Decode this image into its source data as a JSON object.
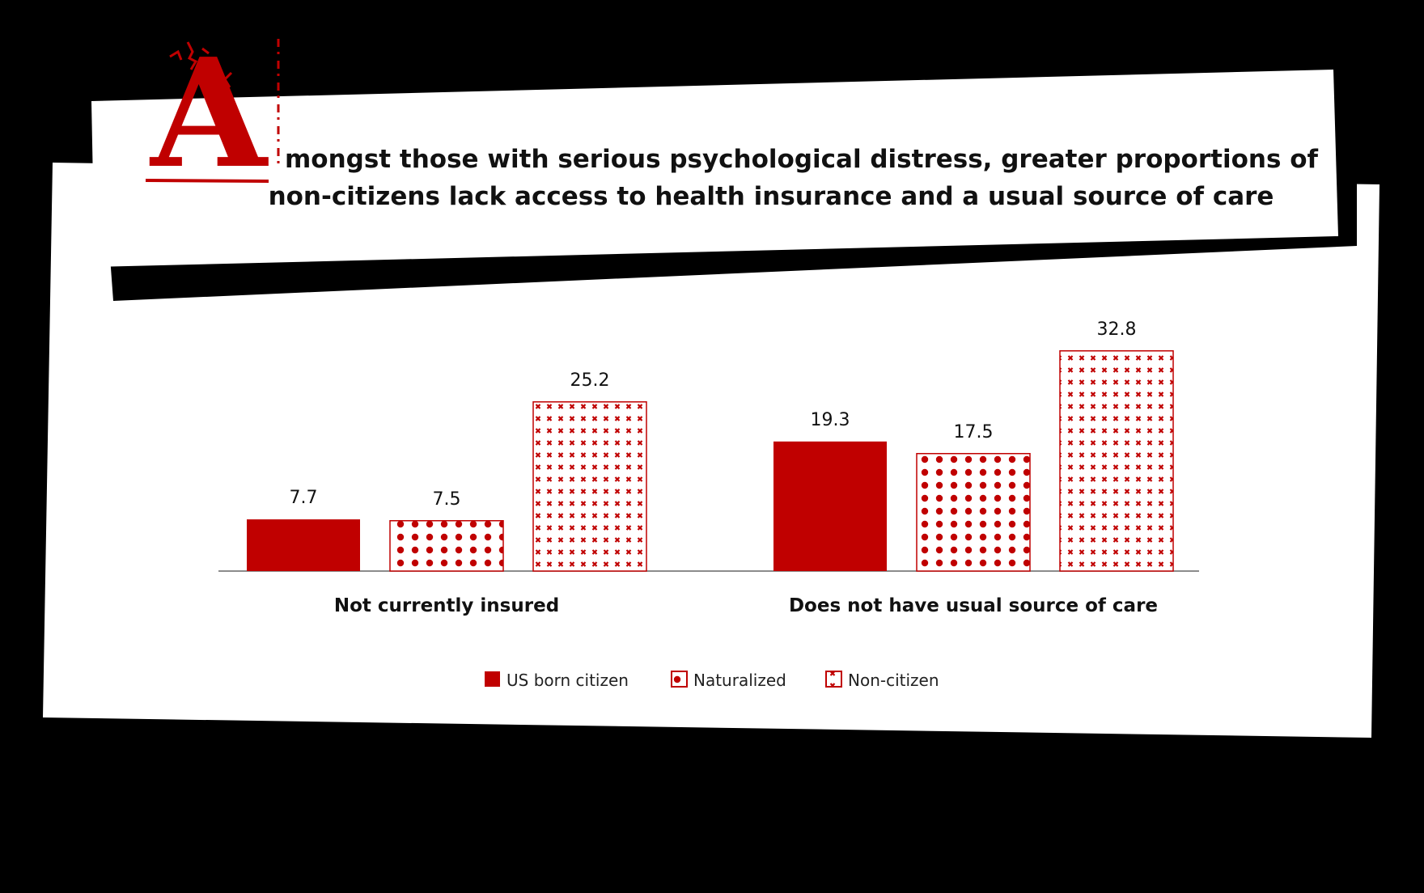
{
  "title": {
    "drop_cap": "A",
    "line1": "mongst those with serious psychological distress, greater proportions of",
    "line2": "non-citizens lack access to health insurance and a usual source of care"
  },
  "colors": {
    "background": "#000000",
    "paper": "#ffffff",
    "accent": "#c00000",
    "text": "#111111"
  },
  "chart_data": {
    "type": "bar",
    "title": "Amongst those with serious psychological distress, greater proportions of non-citizens lack access to health insurance and a usual source of care",
    "categories": [
      "Not currently insured",
      "Does not have usual source of care"
    ],
    "series": [
      {
        "name": "US born citizen",
        "pattern": "solid",
        "values": [
          7.7,
          19.3
        ]
      },
      {
        "name": "Naturalized",
        "pattern": "dots",
        "values": [
          7.5,
          17.5
        ]
      },
      {
        "name": "Non-citizen",
        "pattern": "crosses",
        "values": [
          25.2,
          32.8
        ]
      }
    ],
    "xlabel": "",
    "ylabel": "",
    "ylim": [
      0,
      33
    ],
    "grid": false,
    "legend_position": "bottom-center"
  }
}
